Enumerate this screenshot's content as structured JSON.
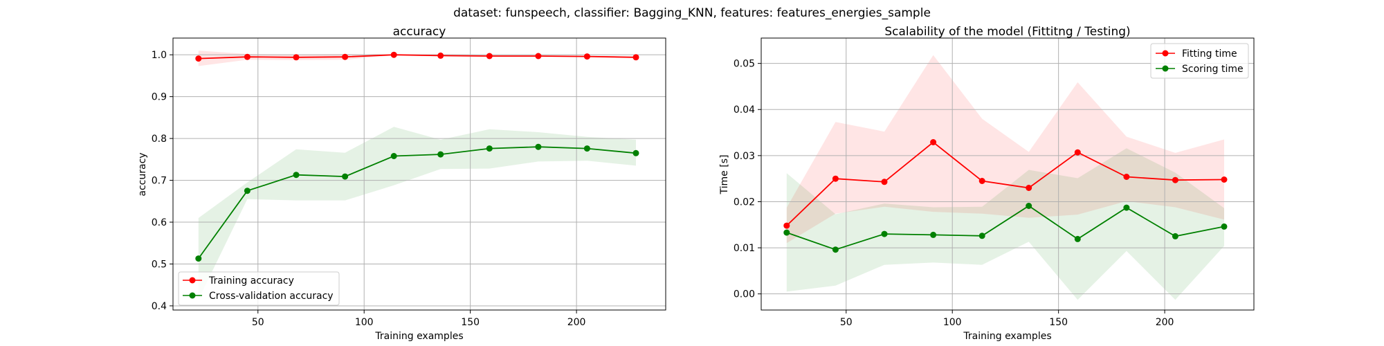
{
  "figure": {
    "suptitle": "dataset: funspeech, classifier: Bagging_KNN, features: features_energies_sample"
  },
  "chart_data": [
    {
      "type": "line",
      "title": "accuracy",
      "xlabel": "Training examples",
      "ylabel": "accuracy",
      "xlim": [
        10,
        242
      ],
      "ylim": [
        0.39,
        1.04
      ],
      "xticks": [
        50,
        100,
        150,
        200
      ],
      "yticks": [
        0.4,
        0.5,
        0.6,
        0.7,
        0.8,
        0.9,
        1.0
      ],
      "grid": true,
      "legend_position": "lower-left",
      "x": [
        22,
        45,
        68,
        91,
        114,
        136,
        159,
        182,
        205,
        228
      ],
      "series": [
        {
          "name": "Training accuracy",
          "color": "#ff0000",
          "fill": "rgba(255,0,0,0.1)",
          "values": [
            0.991,
            0.995,
            0.994,
            0.995,
            1.0,
            0.998,
            0.997,
            0.997,
            0.996,
            0.994
          ],
          "lower": [
            0.973,
            0.988,
            0.987,
            0.988,
            0.999,
            0.996,
            0.995,
            0.995,
            0.994,
            0.992
          ],
          "upper": [
            1.01,
            1.002,
            1.001,
            1.002,
            1.001,
            1.0,
            0.999,
            0.999,
            0.998,
            0.996
          ]
        },
        {
          "name": "Cross-validation accuracy",
          "color": "#008000",
          "fill": "rgba(0,128,0,0.1)",
          "values": [
            0.513,
            0.675,
            0.713,
            0.709,
            0.758,
            0.762,
            0.776,
            0.78,
            0.776,
            0.765
          ],
          "lower": [
            0.415,
            0.655,
            0.652,
            0.652,
            0.688,
            0.727,
            0.728,
            0.745,
            0.747,
            0.735
          ],
          "upper": [
            0.61,
            0.695,
            0.774,
            0.766,
            0.828,
            0.797,
            0.822,
            0.815,
            0.804,
            0.797
          ]
        }
      ]
    },
    {
      "type": "line",
      "title": "Scalability of the model (Fittitng / Testing)",
      "xlabel": "Training examples",
      "ylabel": "Time [s]",
      "xlim": [
        10,
        242
      ],
      "ylim": [
        -0.0035,
        0.0555
      ],
      "xticks": [
        50,
        100,
        150,
        200
      ],
      "yticks": [
        0.0,
        0.01,
        0.02,
        0.03,
        0.04,
        0.05
      ],
      "ytick_labels": [
        "0.00",
        "0.01",
        "0.02",
        "0.03",
        "0.04",
        "0.05"
      ],
      "grid": true,
      "legend_position": "top-right",
      "x": [
        22,
        45,
        68,
        91,
        114,
        136,
        159,
        182,
        205,
        228
      ],
      "series": [
        {
          "name": "Fitting time",
          "color": "#ff0000",
          "fill": "rgba(255,0,0,0.1)",
          "values": [
            0.0148,
            0.025,
            0.0243,
            0.0329,
            0.0245,
            0.023,
            0.0307,
            0.0254,
            0.0247,
            0.0248
          ],
          "lower": [
            0.011,
            0.0174,
            0.0189,
            0.0178,
            0.0174,
            0.0165,
            0.0172,
            0.0201,
            0.0188,
            0.0161
          ],
          "upper": [
            0.0187,
            0.0373,
            0.0352,
            0.0518,
            0.038,
            0.0308,
            0.0459,
            0.0341,
            0.0306,
            0.0335
          ]
        },
        {
          "name": "Scoring time",
          "color": "#008000",
          "fill": "rgba(0,128,0,0.1)",
          "values": [
            0.0133,
            0.0096,
            0.013,
            0.0128,
            0.0126,
            0.0191,
            0.0119,
            0.0187,
            0.0125,
            0.0146
          ],
          "lower": [
            0.0005,
            0.0018,
            0.0063,
            0.0068,
            0.0063,
            0.0113,
            -0.0013,
            0.0093,
            -0.0013,
            0.0104
          ],
          "upper": [
            0.0262,
            0.0173,
            0.0196,
            0.0188,
            0.0189,
            0.0269,
            0.0251,
            0.0316,
            0.0263,
            0.0186
          ]
        }
      ]
    }
  ]
}
